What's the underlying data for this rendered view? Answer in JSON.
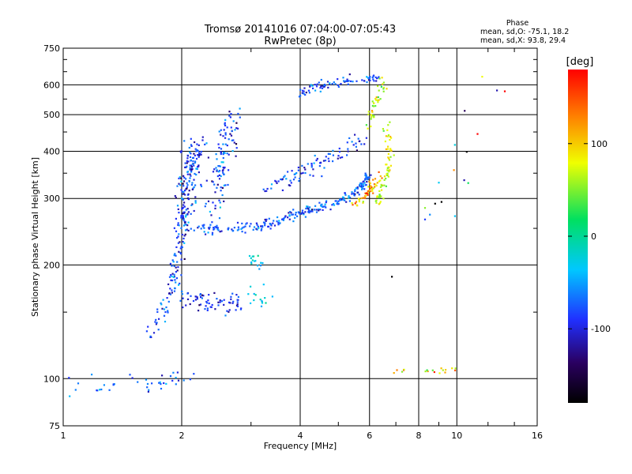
{
  "chart_data": {
    "type": "scatter",
    "title": "Tromsø 20141016 07:04:00-07:05:43",
    "subtitle": "RwPretec (8p)",
    "xlabel": "Frequency [MHz]",
    "ylabel": "Stationary phase Virtual Height [km]",
    "x_scale": "log",
    "y_scale": "log",
    "xlim": [
      1,
      16
    ],
    "ylim": [
      75,
      750
    ],
    "xticks": [
      "1",
      "2",
      "4",
      "6",
      "8",
      "10",
      "16"
    ],
    "xtick_values": [
      1,
      2,
      4,
      6,
      8,
      10,
      16
    ],
    "yticks": [
      "75",
      "100",
      "200",
      "300",
      "400",
      "500",
      "600",
      "750"
    ],
    "ytick_values": [
      75,
      100,
      200,
      300,
      400,
      500,
      600,
      750
    ],
    "grid": true,
    "stats": {
      "heading": "Phase",
      "line_o": "mean, sd,O: -75.1, 18.2",
      "line_x": "mean, sd,X:  93.8, 29.4"
    },
    "colorbar": {
      "label": "[deg]",
      "range": [
        -180,
        180
      ],
      "ticks": [
        "100",
        "0",
        "-100"
      ],
      "tick_values": [
        100,
        0,
        -100
      ]
    },
    "traces": [
      {
        "x": [
          1.0,
          1.1,
          1.25,
          1.4,
          1.55,
          1.7,
          1.85,
          2.0,
          2.1
        ],
        "y": [
          95,
          97,
          96,
          96,
          98,
          97,
          100,
          99,
          98
        ],
        "spread": 0.03,
        "count": 40,
        "phase": -80,
        "phase_spread": 20
      },
      {
        "x": [
          1.7,
          1.8,
          1.9,
          1.95,
          2.0,
          2.05
        ],
        "y": [
          135,
          150,
          175,
          200,
          240,
          280
        ],
        "spread": 0.035,
        "count": 110,
        "phase": -90,
        "phase_spread": 25
      },
      {
        "x": [
          2.0,
          2.05,
          2.1,
          2.2
        ],
        "y": [
          260,
          310,
          360,
          420
        ],
        "spread": 0.05,
        "count": 160,
        "phase": -95,
        "phase_spread": 25
      },
      {
        "x": [
          2.4,
          2.5,
          2.6,
          2.7
        ],
        "y": [
          280,
          360,
          430,
          480
        ],
        "spread": 0.045,
        "count": 110,
        "phase": -90,
        "phase_spread": 25
      },
      {
        "x": [
          2.1,
          2.4,
          2.8,
          3.2,
          3.6
        ],
        "y": [
          250,
          248,
          250,
          255,
          262
        ],
        "spread": 0.015,
        "count": 90,
        "phase": -85,
        "phase_spread": 20
      },
      {
        "x": [
          2.0,
          2.3,
          2.6,
          2.8
        ],
        "y": [
          165,
          160,
          158,
          160
        ],
        "spread": 0.03,
        "count": 70,
        "phase": -100,
        "phase_spread": 20
      },
      {
        "x": [
          3.6,
          4.0,
          4.5,
          5.0,
          5.5,
          5.8,
          6.0
        ],
        "y": [
          265,
          275,
          285,
          295,
          310,
          330,
          345
        ],
        "spread": 0.015,
        "count": 150,
        "phase": -80,
        "phase_spread": 25
      },
      {
        "x": [
          3.2,
          3.8,
          4.5,
          5.2,
          5.8
        ],
        "y": [
          320,
          340,
          370,
          400,
          430
        ],
        "spread": 0.03,
        "count": 90,
        "phase": -95,
        "phase_spread": 20
      },
      {
        "x": [
          4.0,
          4.3,
          4.6,
          5.0,
          5.5,
          6.0,
          6.3
        ],
        "y": [
          570,
          590,
          600,
          610,
          620,
          625,
          620
        ],
        "spread": 0.015,
        "count": 80,
        "phase": -90,
        "phase_spread": 20
      },
      {
        "x": [
          5.5,
          5.8,
          6.0,
          6.2,
          6.4
        ],
        "y": [
          290,
          300,
          315,
          330,
          350
        ],
        "spread": 0.015,
        "count": 50,
        "phase": 120,
        "phase_spread": 30
      },
      {
        "x": [
          6.2,
          6.5,
          6.7,
          6.8,
          6.6
        ],
        "y": [
          290,
          320,
          360,
          410,
          460
        ],
        "spread": 0.02,
        "count": 70,
        "phase": 70,
        "phase_spread": 20
      },
      {
        "x": [
          6.0,
          6.1,
          6.3,
          6.5
        ],
        "y": [
          470,
          520,
          560,
          610
        ],
        "spread": 0.02,
        "count": 40,
        "phase": 60,
        "phase_spread": 25
      },
      {
        "x": [
          3.0,
          3.1,
          3.2
        ],
        "y": [
          210,
          205,
          200
        ],
        "spread": 0.02,
        "count": 15,
        "phase": -30,
        "phase_spread": 20
      },
      {
        "x": [
          3.0,
          3.2,
          3.3
        ],
        "y": [
          170,
          160,
          165
        ],
        "spread": 0.03,
        "count": 15,
        "phase": -40,
        "phase_spread": 20
      },
      {
        "x": [
          6.3,
          7.0,
          8.0,
          9.0,
          10.0
        ],
        "y": [
          104,
          105,
          105,
          105,
          106
        ],
        "spread": 0.01,
        "count": 18,
        "phase": 100,
        "phase_spread": 50
      },
      {
        "x": [
          7.0,
          8.5,
          10.0,
          11.0,
          14.0
        ],
        "y": [
          170,
          250,
          360,
          560,
          530
        ],
        "spread": 0.08,
        "count": 18,
        "phase": 0,
        "phase_spread": 120
      }
    ]
  }
}
